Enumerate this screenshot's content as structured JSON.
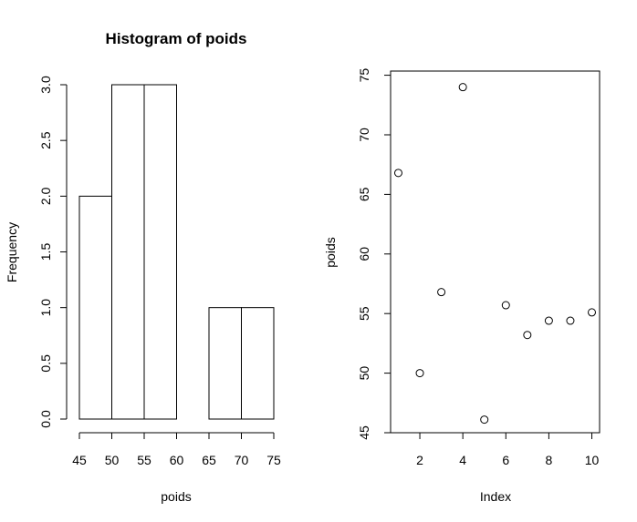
{
  "chart_data": [
    {
      "type": "histogram",
      "title": "Histogram of poids",
      "xlabel": "poids",
      "ylabel": "Frequency",
      "bins": [
        [
          45,
          50
        ],
        [
          50,
          55
        ],
        [
          55,
          60
        ],
        [
          60,
          65
        ],
        [
          65,
          70
        ],
        [
          70,
          75
        ]
      ],
      "values": [
        2,
        3,
        3,
        0,
        1,
        1
      ],
      "xlim": [
        45,
        75
      ],
      "ylim": [
        0,
        3
      ],
      "xticks": [
        45,
        50,
        55,
        60,
        65,
        70,
        75
      ],
      "xtick_labels": [
        "45",
        "50",
        "55",
        "60",
        "65",
        "70",
        "75"
      ],
      "yticks": [
        0,
        0.5,
        1,
        1.5,
        2,
        2.5,
        3
      ],
      "ytick_labels": [
        "0.0",
        "0.5",
        "1.0",
        "1.5",
        "2.0",
        "2.5",
        "3.0"
      ],
      "grid": false
    },
    {
      "type": "scatter",
      "title": "",
      "xlabel": "Index",
      "ylabel": "poids",
      "x": [
        1,
        2,
        3,
        4,
        5,
        6,
        7,
        8,
        9,
        10
      ],
      "y": [
        66.8,
        50.0,
        56.8,
        74.0,
        46.1,
        55.7,
        53.2,
        54.4,
        54.4,
        55.1
      ],
      "xlim": [
        0.64,
        10.36
      ],
      "ylim": [
        45,
        75.35
      ],
      "xticks": [
        2,
        4,
        6,
        8,
        10
      ],
      "xtick_labels": [
        "2",
        "4",
        "6",
        "8",
        "10"
      ],
      "yticks": [
        45,
        50,
        55,
        60,
        65,
        70,
        75
      ],
      "ytick_labels": [
        "45",
        "50",
        "55",
        "60",
        "65",
        "70",
        "75"
      ],
      "box": true,
      "grid": false
    }
  ]
}
